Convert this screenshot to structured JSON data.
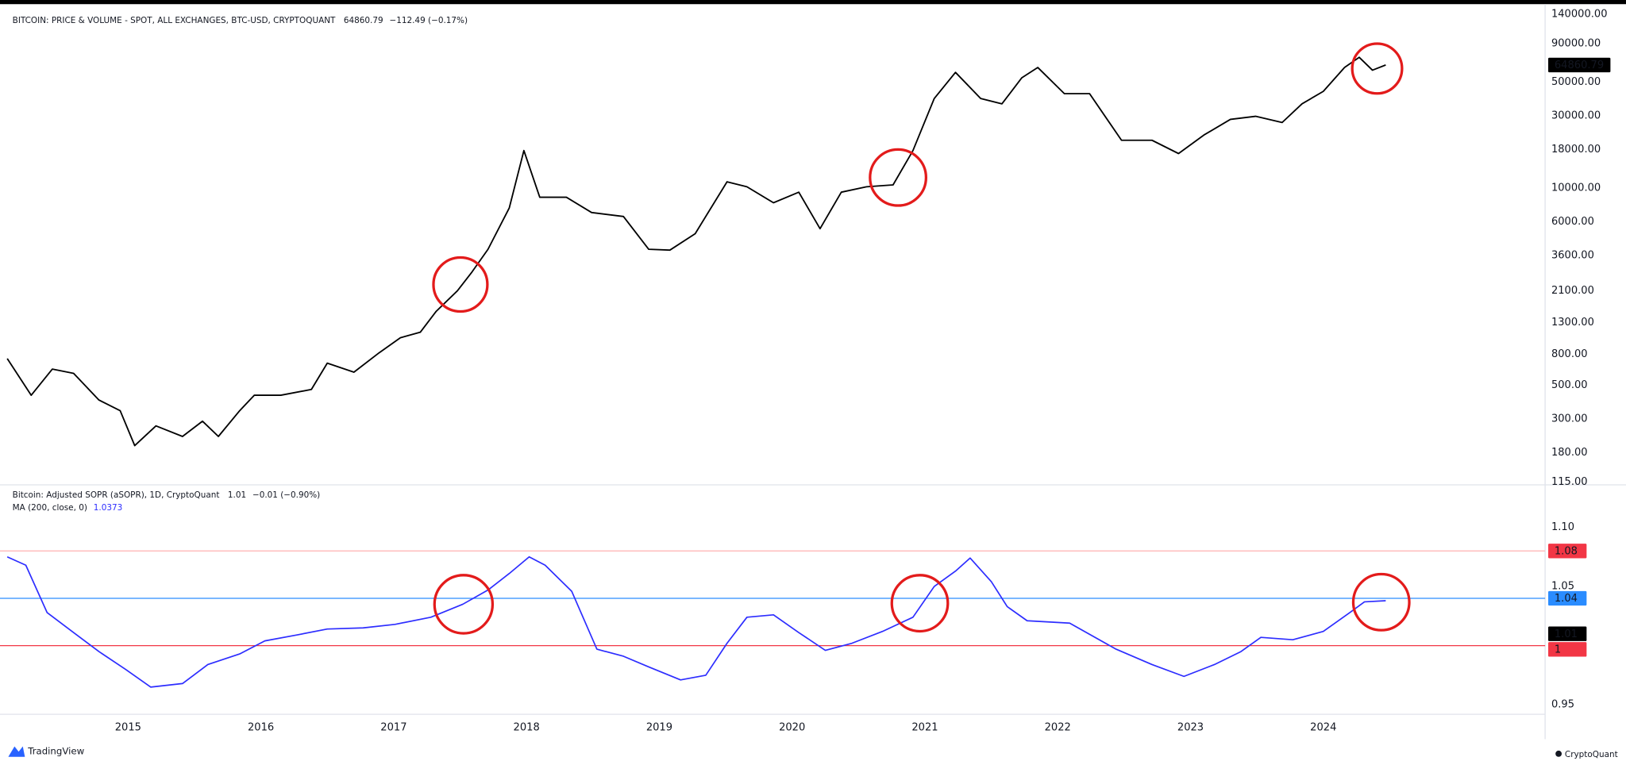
{
  "chart_data": [
    {
      "type": "line",
      "title": "BITCOIN: PRICE & VOLUME - SPOT, ALL EXCHANGES, BTC-USD, CRYPTOQUANT",
      "last_value": 64860.79,
      "change": "−112.49 (−0.17%)",
      "log_scale": true,
      "color": "#000000",
      "xlim": [
        2014.09,
        2025.67
      ],
      "ylim": [
        112,
        161000
      ],
      "yticks": [
        {
          "value": 140000,
          "label": "140000.00"
        },
        {
          "value": 90000,
          "label": "90000.00"
        },
        {
          "value": 50000,
          "label": "50000.00"
        },
        {
          "value": 30000,
          "label": "30000.00"
        },
        {
          "value": 18000,
          "label": "18000.00"
        },
        {
          "value": 10000,
          "label": "10000.00"
        },
        {
          "value": 6000,
          "label": "6000.00"
        },
        {
          "value": 3600,
          "label": "3600.00"
        },
        {
          "value": 2100,
          "label": "2100.00"
        },
        {
          "value": 1300,
          "label": "1300.00"
        },
        {
          "value": 800,
          "label": "800.00"
        },
        {
          "value": 500,
          "label": "500.00"
        },
        {
          "value": 300,
          "label": "300.00"
        },
        {
          "value": 180,
          "label": "180.00"
        },
        {
          "value": 115,
          "label": "115.00"
        }
      ],
      "x": [
        2014.09,
        2014.27,
        2014.43,
        2014.59,
        2014.78,
        2014.94,
        2015.05,
        2015.21,
        2015.41,
        2015.56,
        2015.68,
        2015.84,
        2015.95,
        2016.15,
        2016.38,
        2016.5,
        2016.7,
        2016.89,
        2017.05,
        2017.2,
        2017.32,
        2017.48,
        2017.59,
        2017.71,
        2017.87,
        2017.98,
        2018.1,
        2018.3,
        2018.49,
        2018.73,
        2018.92,
        2019.08,
        2019.27,
        2019.51,
        2019.66,
        2019.86,
        2020.05,
        2020.21,
        2020.37,
        2020.56,
        2020.76,
        2020.91,
        2021.07,
        2021.23,
        2021.42,
        2021.58,
        2021.73,
        2021.85,
        2022.05,
        2022.24,
        2022.48,
        2022.71,
        2022.91,
        2023.1,
        2023.3,
        2023.49,
        2023.69,
        2023.84,
        2024.0,
        2024.16,
        2024.27,
        2024.37,
        2024.47
      ],
      "values": [
        750,
        430,
        640,
        600,
        400,
        340,
        200,
        270,
        230,
        290,
        230,
        340,
        430,
        430,
        470,
        700,
        610,
        820,
        1030,
        1120,
        1540,
        2100,
        2800,
        3950,
        7400,
        17700,
        8700,
        8700,
        6900,
        6500,
        3950,
        3900,
        5000,
        11000,
        10200,
        8000,
        9400,
        5400,
        9400,
        10200,
        10500,
        17700,
        39000,
        58000,
        39000,
        36000,
        53500,
        62500,
        42000,
        42000,
        20700,
        20700,
        16900,
        22400,
        28400,
        29800,
        27100,
        36000,
        43500,
        62500,
        73000,
        60000,
        64900
      ]
    },
    {
      "type": "line",
      "title": "Bitcoin: Adjusted SOPR (aSOPR), 1D, CryptoQuant",
      "last_value": 1.01,
      "change": "−0.01 (−0.90%)",
      "series_name": "MA (200, close, 0)",
      "ma_value": 1.0373,
      "color": "#2d2dff",
      "xlim": [
        2014.09,
        2025.67
      ],
      "xticks": [
        2015,
        2016,
        2017,
        2018,
        2019,
        2020,
        2021,
        2022,
        2023,
        2024
      ],
      "ylim": [
        0.942,
        1.135
      ],
      "yticks": [
        {
          "value": 1.1,
          "label": "1.10"
        },
        1.05,
        0.95
      ],
      "hlines": [
        {
          "value": 1.08,
          "color": "#ffb8b8",
          "badge": "#f23645"
        },
        {
          "value": 1.04,
          "color": "#2a8cff",
          "badge": "#2a8cff"
        },
        {
          "value": 1.0,
          "color": "#f23645",
          "badge": "#f23645"
        }
      ],
      "x": [
        2014.09,
        2014.23,
        2014.39,
        2014.59,
        2014.78,
        2014.98,
        2015.17,
        2015.41,
        2015.6,
        2015.84,
        2016.03,
        2016.27,
        2016.5,
        2016.77,
        2017.01,
        2017.28,
        2017.52,
        2017.71,
        2017.87,
        2018.02,
        2018.14,
        2018.34,
        2018.53,
        2018.73,
        2018.92,
        2019.16,
        2019.35,
        2019.51,
        2019.66,
        2019.86,
        2020.05,
        2020.25,
        2020.45,
        2020.68,
        2020.91,
        2021.07,
        2021.23,
        2021.34,
        2021.5,
        2021.62,
        2021.77,
        2022.09,
        2022.44,
        2022.71,
        2022.95,
        2023.18,
        2023.38,
        2023.53,
        2023.77,
        2024.0,
        2024.2,
        2024.31,
        2024.47
      ],
      "values": [
        1.075,
        1.068,
        1.028,
        1.011,
        0.995,
        0.98,
        0.965,
        0.968,
        0.984,
        0.993,
        1.004,
        1.009,
        1.014,
        1.015,
        1.018,
        1.024,
        1.035,
        1.047,
        1.061,
        1.075,
        1.068,
        1.046,
        0.997,
        0.991,
        0.982,
        0.971,
        0.975,
        1.002,
        1.024,
        1.026,
        1.011,
        0.996,
        1.002,
        1.012,
        1.024,
        1.05,
        1.063,
        1.074,
        1.054,
        1.033,
        1.021,
        1.019,
        0.997,
        0.984,
        0.974,
        0.984,
        0.995,
        1.007,
        1.005,
        1.012,
        1.028,
        1.037,
        1.038
      ]
    }
  ],
  "footer": {
    "left_logo": "TradingView",
    "right_logo": "CryptoQuant"
  }
}
